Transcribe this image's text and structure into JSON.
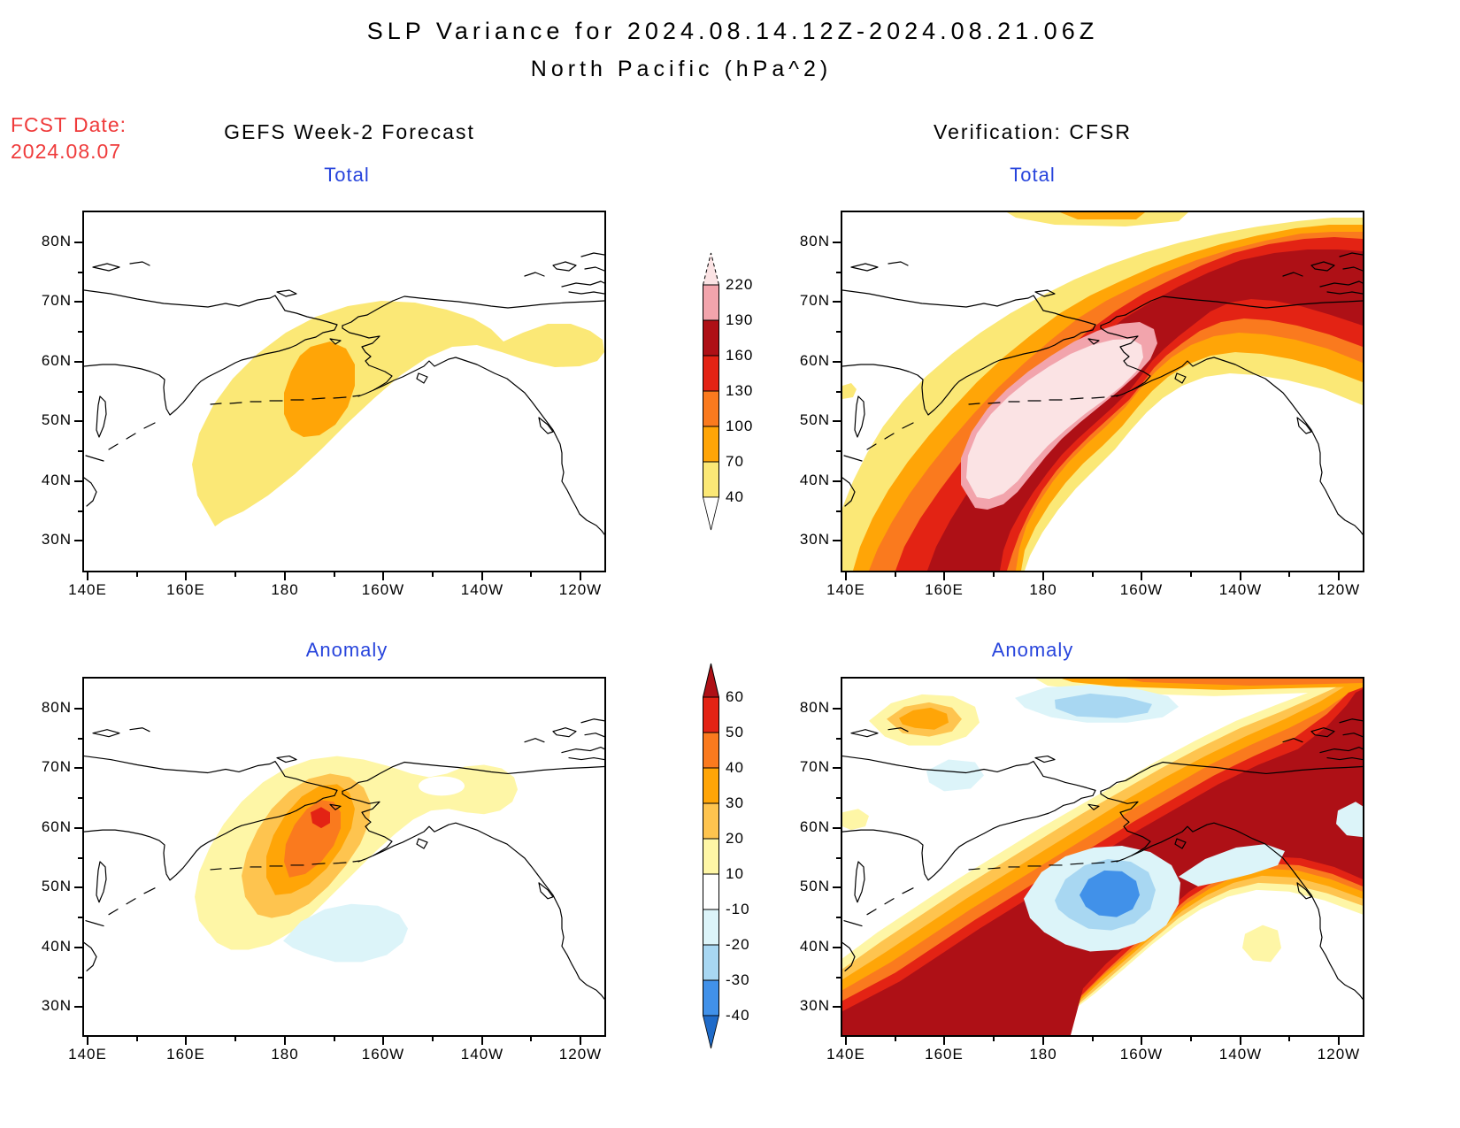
{
  "header": {
    "title": "SLP Variance for 2024.08.14.12Z-2024.08.21.06Z",
    "subtitle": "North Pacific (hPa^2)",
    "fcst_label": "FCST Date:",
    "fcst_date": "2024.08.07",
    "left_model": "GEFS Week-2 Forecast",
    "right_model": "Verification: CFSR"
  },
  "panels": [
    {
      "id": "gefs-total",
      "title": "Total"
    },
    {
      "id": "cfsr-total",
      "title": "Total"
    },
    {
      "id": "gefs-anomaly",
      "title": "Anomaly"
    },
    {
      "id": "cfsr-anomaly",
      "title": "Anomaly"
    }
  ],
  "axes": {
    "lat_labels": [
      "80N",
      "70N",
      "60N",
      "50N",
      "40N",
      "30N"
    ],
    "lon_labels": [
      "140E",
      "160E",
      "180",
      "160W",
      "140W",
      "120W"
    ]
  },
  "colorbars": {
    "total": {
      "tick_labels": [
        "220",
        "190",
        "160",
        "130",
        "100",
        "70",
        "40"
      ],
      "segment_colors": [
        "pink",
        "darkRed",
        "red",
        "darkOrange",
        "orange",
        "yellow"
      ],
      "top_arrow": "palePink",
      "bottom_arrow": "white"
    },
    "anomaly": {
      "tick_labels": [
        "60",
        "50",
        "40",
        "30",
        "20",
        "10",
        "-10",
        "-20",
        "-30",
        "-40"
      ],
      "segment_colors": [
        "red",
        "darkOrange",
        "orange",
        "lightOrange",
        "paleYellow",
        "white",
        "paleCyan",
        "lightBlue",
        "medBlue"
      ],
      "top_arrow": "darkRed",
      "bottom_arrow": "darkBlue"
    }
  },
  "colors": {
    "yellow": "#FBE876",
    "paleYellow": "#FEF6A6",
    "lightOrange": "#FEC44F",
    "orange": "#FFA507",
    "darkOrange": "#FA7A1E",
    "red": "#E32314",
    "darkRed": "#AE1016",
    "pink": "#F2A4AC",
    "palePink": "#FBE3E4",
    "paleCyan": "#DCF4F9",
    "lightBlue": "#A8D7F2",
    "medBlue": "#4191E9",
    "darkBlue": "#1F6BC9",
    "titleBlue": "#2744DC",
    "fcstRed": "#EF3B3B"
  },
  "chart_data": [
    {
      "type": "heatmap",
      "title": "GEFS Week-2 Forecast - Total SLP variance",
      "units": "hPa^2",
      "xlabel_ticks": [
        "140E",
        "160E",
        "180",
        "160W",
        "140W",
        "120W"
      ],
      "ylabel_ticks": [
        "80N",
        "70N",
        "60N",
        "50N",
        "40N",
        "30N"
      ],
      "contour_levels": [
        40,
        70,
        100,
        130,
        160,
        190,
        220
      ],
      "legend_position": "center colorbar between panels",
      "features": [
        {
          "description": "broad 40-70 hPa^2 region from NW Pacific across Bering Sea extending ENE along 70N toward Canadian Arctic",
          "approx_center": "60N 180"
        },
        {
          "description": "maximum 70-100 hPa^2 over Bering Sea / western Alaska",
          "approx_center": "60N 172W"
        }
      ]
    },
    {
      "type": "heatmap",
      "title": "Verification: CFSR - Total SLP variance",
      "units": "hPa^2",
      "contour_levels": [
        40,
        70,
        100,
        130,
        160,
        190,
        220
      ],
      "features": [
        {
          "description": "intense SW-NE diagonal band of variance from NW Pacific (35N 140E) across the Bering Sea into Arctic Alaska/Canada",
          "peak": "> 220 hPa^2",
          "approx_center": "57N 178W"
        },
        {
          "description": "secondary 160-190 hPa^2 maximum along Arctic coast of Alaska / NW Canada",
          "approx_center": "72N 130W"
        },
        {
          "description": "weak 40-70 patches near 78N 155E and along top edge"
        }
      ]
    },
    {
      "type": "heatmap",
      "title": "GEFS Week-2 Forecast - SLP variance Anomaly",
      "units": "hPa^2",
      "contour_levels": [
        -40,
        -30,
        -20,
        -10,
        10,
        20,
        30,
        40,
        50,
        60
      ],
      "features": [
        {
          "description": "positive anomaly peaking 50-60 hPa^2 centered over western Alaska / Bering Strait",
          "approx_center": "63N 167W"
        },
        {
          "description": "10-20 hPa^2 arm extending east along 70N"
        },
        {
          "description": "weak negative anomaly -10 to -20 hPa^2 south of the Aleutians",
          "approx_center": "45N 172W"
        }
      ]
    },
    {
      "type": "heatmap",
      "title": "Verification: CFSR - SLP variance Anomaly",
      "units": "hPa^2",
      "contour_levels": [
        -40,
        -30,
        -20,
        -10,
        10,
        20,
        30,
        40,
        50,
        60
      ],
      "features": [
        {
          "description": "large positive anomaly > 60 hPa^2 in SW-NE band from 32N 140E across Bering Sea, Alaska and NW Canada"
        },
        {
          "description": "negative anomaly -30 to -40 hPa^2 in Gulf of Alaska",
          "approx_center": "51N 152W"
        },
        {
          "description": "negative anomaly near -20 hPa^2 around 80N 175W"
        },
        {
          "description": "positive anomaly 20-40 hPa^2 near 76N 155E"
        },
        {
          "description": "small positive patch 10-20 hPa^2 near 36N 130W"
        }
      ]
    }
  ]
}
